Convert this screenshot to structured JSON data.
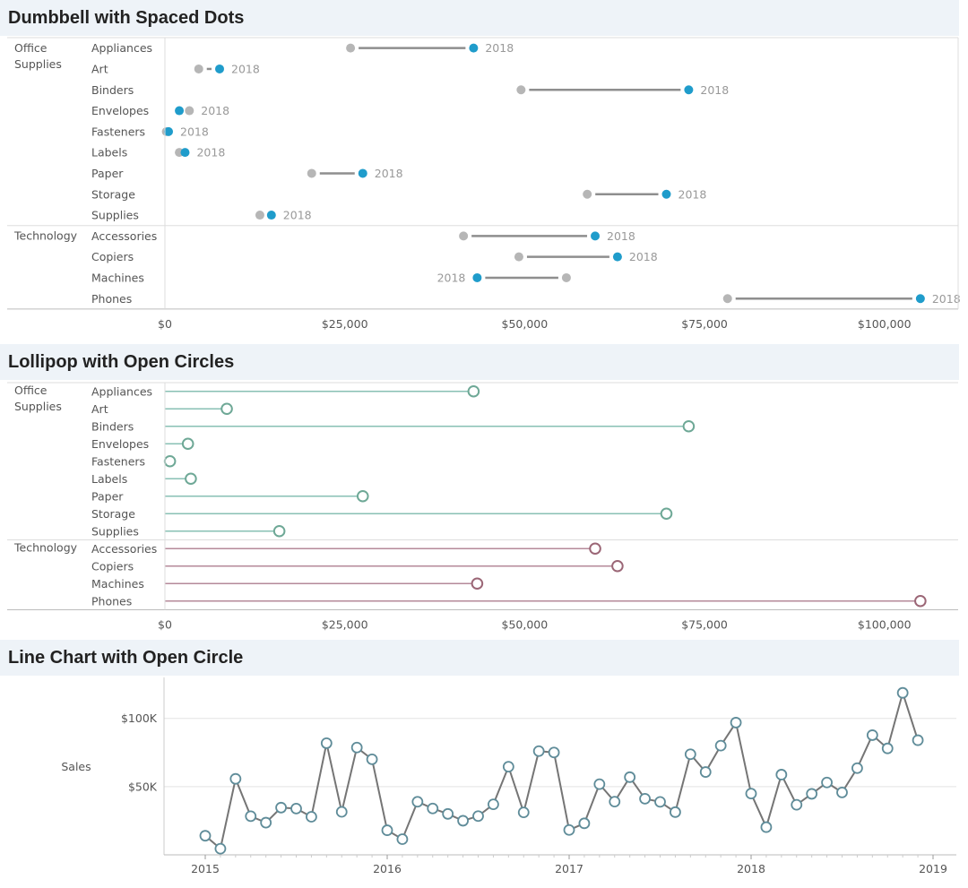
{
  "panels": [
    {
      "title": "Dumbbell with Spaced Dots"
    },
    {
      "title": "Lollipop with Open Circles"
    },
    {
      "title": "Line Chart with Open Circle"
    }
  ],
  "colors": {
    "baseline_dot": "#b6b6b6",
    "highlight_dot": "#1f9ccb",
    "dumbbell_line": "#8e8e8e",
    "office_stem": "#88c0b4",
    "office_circle": "#6ea896",
    "tech_stem": "#b58a9a",
    "tech_circle": "#9b6676",
    "line": "#757575",
    "point_stroke": "#5f8c99",
    "grid": "#e3e3e3",
    "axis": "#cccccc"
  },
  "chart_data": [
    {
      "type": "dumbbell",
      "year_label": "2018",
      "x_ticks": [
        "$0",
        "$25,000",
        "$50,000",
        "$75,000",
        "$100,000"
      ],
      "xlim": [
        0,
        110000
      ],
      "groups": [
        {
          "name": "Office Supplies",
          "name_lines": [
            "Office",
            "Supplies"
          ],
          "rows": [
            {
              "label": "Appliances",
              "start": 25800,
              "end": 42900
            },
            {
              "label": "Art",
              "start": 4700,
              "end": 7600
            },
            {
              "label": "Binders",
              "start": 49500,
              "end": 72800
            },
            {
              "label": "Envelopes",
              "start": 3400,
              "end": 2000
            },
            {
              "label": "Fasteners",
              "start": 200,
              "end": 500
            },
            {
              "label": "Labels",
              "start": 2000,
              "end": 2800
            },
            {
              "label": "Paper",
              "start": 20400,
              "end": 27500
            },
            {
              "label": "Storage",
              "start": 58700,
              "end": 69700
            },
            {
              "label": "Supplies",
              "start": 13200,
              "end": 14800
            }
          ]
        },
        {
          "name": "Technology",
          "name_lines": [
            "Technology"
          ],
          "rows": [
            {
              "label": "Accessories",
              "start": 41500,
              "end": 59800
            },
            {
              "label": "Copiers",
              "start": 49200,
              "end": 62900
            },
            {
              "label": "Machines",
              "start": 55800,
              "end": 43400
            },
            {
              "label": "Phones",
              "start": 78200,
              "end": 105000
            }
          ]
        }
      ]
    },
    {
      "type": "lollipop",
      "x_ticks": [
        "$0",
        "$25,000",
        "$50,000",
        "$75,000",
        "$100,000"
      ],
      "xlim": [
        0,
        110000
      ],
      "groups": [
        {
          "name": "Office Supplies",
          "name_lines": [
            "Office",
            "Supplies"
          ],
          "rows": [
            {
              "label": "Appliances",
              "value": 42900
            },
            {
              "label": "Art",
              "value": 8600
            },
            {
              "label": "Binders",
              "value": 72800
            },
            {
              "label": "Envelopes",
              "value": 3200
            },
            {
              "label": "Fasteners",
              "value": 700
            },
            {
              "label": "Labels",
              "value": 3600
            },
            {
              "label": "Paper",
              "value": 27500
            },
            {
              "label": "Storage",
              "value": 69700
            },
            {
              "label": "Supplies",
              "value": 15900
            }
          ]
        },
        {
          "name": "Technology",
          "name_lines": [
            "Technology"
          ],
          "rows": [
            {
              "label": "Accessories",
              "value": 59800
            },
            {
              "label": "Copiers",
              "value": 62900
            },
            {
              "label": "Machines",
              "value": 43400
            },
            {
              "label": "Phones",
              "value": 105000
            }
          ]
        }
      ]
    },
    {
      "type": "line",
      "ylabel": "Sales",
      "y_ticks": [
        {
          "value": 50000,
          "label": "$50K"
        },
        {
          "value": 100000,
          "label": "$100K"
        }
      ],
      "ylim": [
        0,
        130000
      ],
      "x_ticks": [
        "2015",
        "2016",
        "2017",
        "2018",
        "2019"
      ],
      "x_start_year": 2015,
      "values": [
        14000,
        4500,
        55700,
        28300,
        23600,
        34600,
        33900,
        27900,
        81800,
        31500,
        78600,
        70000,
        18000,
        11500,
        38900,
        34000,
        30000,
        25000,
        28400,
        37000,
        64600,
        31100,
        76000,
        75000,
        18200,
        23100,
        51800,
        39000,
        56900,
        41100,
        38800,
        31300,
        73700,
        60700,
        80000,
        96900,
        44900,
        20300,
        58800,
        36700,
        44700,
        53000,
        45700,
        63500,
        87700,
        78000,
        118700,
        84000
      ]
    }
  ]
}
